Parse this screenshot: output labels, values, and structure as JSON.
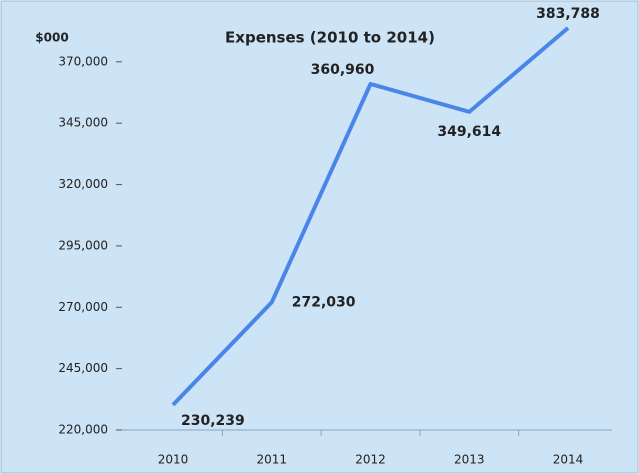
{
  "chart_data": {
    "type": "line",
    "title": "Expenses (2010 to 2014)",
    "y_axis_label": "$000",
    "categories": [
      "2010",
      "2011",
      "2012",
      "2013",
      "2014"
    ],
    "series": [
      {
        "name": "Expenses",
        "color": "#4a86e8",
        "values": [
          230239,
          272030,
          360960,
          349614,
          383788
        ],
        "value_labels": [
          "230,239",
          "272,030",
          "360,960",
          "349,614",
          "383,788"
        ]
      }
    ],
    "ylim": [
      220000,
      385000
    ],
    "yticks": [
      {
        "value": 220000,
        "label": "220,000"
      },
      {
        "value": 245000,
        "label": "245,000"
      },
      {
        "value": 270000,
        "label": "270,000"
      },
      {
        "value": 295000,
        "label": "295,000"
      },
      {
        "value": 320000,
        "label": "320,000"
      },
      {
        "value": 345000,
        "label": "345,000"
      },
      {
        "value": 370000,
        "label": "370,000"
      }
    ],
    "grid": false
  }
}
